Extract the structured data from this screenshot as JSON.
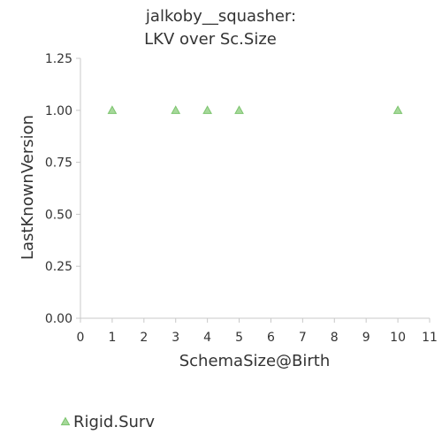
{
  "chart_data": {
    "type": "scatter",
    "title_lines": [
      "jalkoby__squasher:",
      "LKV over Sc.Size"
    ],
    "xlabel": "SchemaSize@Birth",
    "ylabel": "LastKnownVersion",
    "xlim": [
      0,
      11
    ],
    "ylim": [
      0,
      1.25
    ],
    "x_ticks": [
      0,
      1,
      2,
      3,
      4,
      5,
      6,
      7,
      8,
      9,
      10,
      11
    ],
    "x_tick_labels": [
      "0",
      "1",
      "2",
      "3",
      "4",
      "5",
      "6",
      "7",
      "8",
      "9",
      "10",
      "11"
    ],
    "y_ticks": [
      0,
      0.25,
      0.5,
      0.75,
      1.0,
      1.25
    ],
    "y_tick_labels": [
      "0.00",
      "0.25",
      "0.50",
      "0.75",
      "1.00",
      "1.25"
    ],
    "grid": false,
    "legend_position": "bottom-left",
    "series": [
      {
        "name": "Rigid.Surv",
        "marker": "triangle",
        "color": "#a6d89a",
        "stroke": "#7cc46e",
        "x": [
          1,
          3,
          4,
          5,
          10
        ],
        "y": [
          1.0,
          1.0,
          1.0,
          1.0,
          1.0
        ]
      }
    ]
  }
}
